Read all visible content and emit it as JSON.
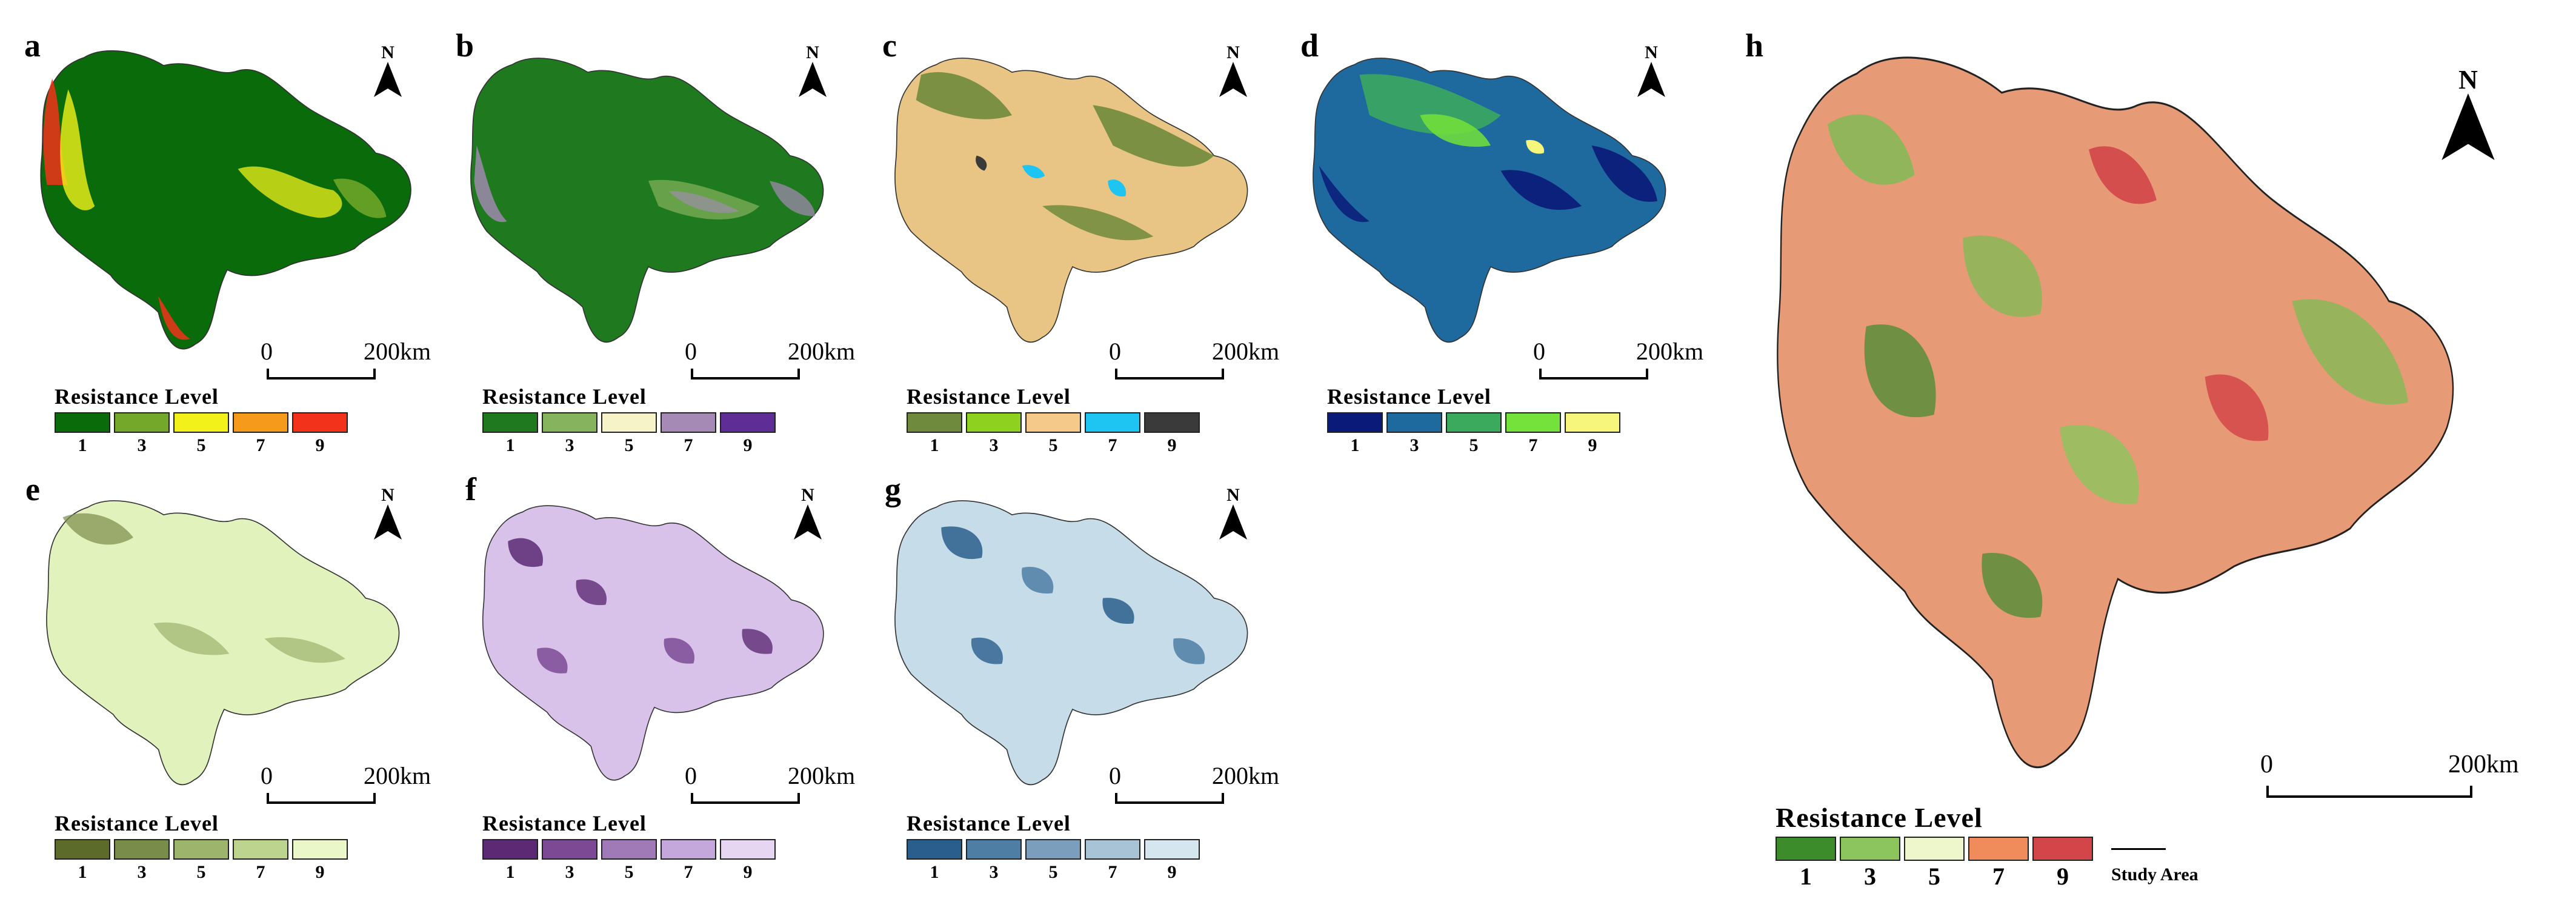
{
  "north_label": "N",
  "legend_title": "Resistance Level",
  "legend_levels": [
    "1",
    "3",
    "5",
    "7",
    "9"
  ],
  "scale": {
    "start": "0",
    "end": "200km"
  },
  "study_area_label": "Study Area",
  "panels": [
    {
      "letter": "a",
      "colors": [
        "#0a6b0a",
        "#74a82a",
        "#f2f21a",
        "#f59a1a",
        "#f2321a"
      ],
      "base": "#0a6b0a",
      "accent": "#f2f21a"
    },
    {
      "letter": "b",
      "colors": [
        "#1f7a1f",
        "#86b45e",
        "#f6f3c8",
        "#a68ab6",
        "#5e2e96"
      ],
      "base": "#1f7a1f",
      "accent": "#a68ab6"
    },
    {
      "letter": "c",
      "colors": [
        "#6f8a3c",
        "#8ed11e",
        "#f5c98a",
        "#1ec4f2",
        "#3a3a3a"
      ],
      "base": "#e9c585",
      "accent": "#6f8a3c"
    },
    {
      "letter": "d",
      "colors": [
        "#0a1a78",
        "#1e6a9e",
        "#3caa5c",
        "#74e23a",
        "#f6f67c"
      ],
      "base": "#1e6a9e",
      "accent": "#74e23a"
    },
    {
      "letter": "e",
      "colors": [
        "#5c6b2a",
        "#7a8c4a",
        "#9cb46c",
        "#bcd48e",
        "#eaf7c8"
      ],
      "base": "#e2f2bc",
      "accent": "#7a8c4a"
    },
    {
      "letter": "f",
      "colors": [
        "#5c2a74",
        "#7c4a94",
        "#a07ab6",
        "#c4a8dc",
        "#e6d6f2"
      ],
      "base": "#d8c2ea",
      "accent": "#5c2a74"
    },
    {
      "letter": "g",
      "colors": [
        "#2a5e8c",
        "#4e7ea4",
        "#7a9ebc",
        "#a8c2d6",
        "#d6e6ee"
      ],
      "base": "#c6dce8",
      "accent": "#2a5e8c"
    },
    {
      "letter": "h",
      "colors": [
        "#3c8c2c",
        "#8cc45e",
        "#eef6cc",
        "#f08c5c",
        "#d2464a"
      ],
      "base": "#e69a76",
      "accent": "#7cbc54"
    }
  ]
}
